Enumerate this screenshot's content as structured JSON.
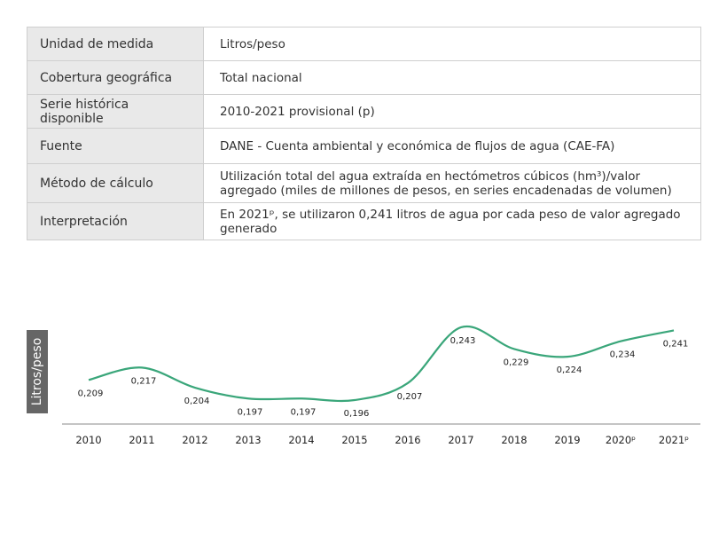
{
  "table": [
    {
      "label": "Unidad de medida",
      "value": "Litros/peso"
    },
    {
      "label": "Cobertura geográfica",
      "value": "Total nacional"
    },
    {
      "label": "Serie histórica disponible",
      "value": "2010-2021 provisional (p)"
    },
    {
      "label": "Fuente",
      "value": "DANE - Cuenta ambiental y económica de flujos de agua (CAE-FA)"
    },
    {
      "label": "Método de cálculo",
      "value": "Utilización total del agua extraída en hectómetros cúbicos (hm³)/valor agregado (miles de millones de pesos, en series encadenadas de volumen)"
    },
    {
      "label": "Interpretación",
      "value": "En 2021ᵖ, se utilizaron 0,241 litros de agua por cada peso de valor agregado generado"
    }
  ],
  "chart_data": {
    "type": "line",
    "title": "",
    "xlabel": "",
    "ylabel": "Litros/peso",
    "categories": [
      "2010",
      "2011",
      "2012",
      "2013",
      "2014",
      "2015",
      "2016",
      "2017",
      "2018",
      "2019",
      "2020ᵖ",
      "2021ᵖ"
    ],
    "values": [
      0.209,
      0.217,
      0.204,
      0.197,
      0.197,
      0.196,
      0.207,
      0.243,
      0.229,
      0.224,
      0.234,
      0.241
    ],
    "value_labels": [
      "0,209",
      "0,217",
      "0,204",
      "0,197",
      "0,197",
      "0,196",
      "0,207",
      "0,243",
      "0,229",
      "0,224",
      "0,234",
      "0,241"
    ],
    "line_color": "#3aa67a",
    "grid": false
  }
}
